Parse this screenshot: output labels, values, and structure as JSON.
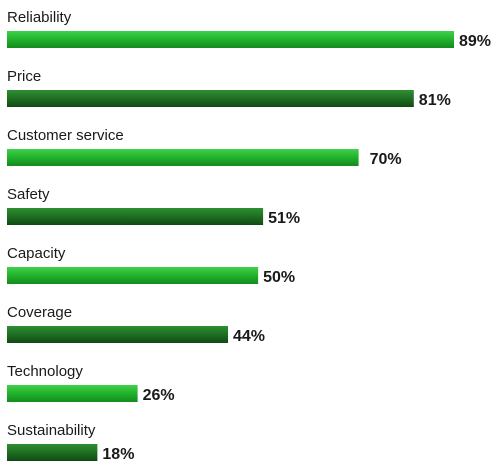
{
  "chart_data": {
    "type": "bar",
    "orientation": "horizontal",
    "categories": [
      "Reliability",
      "Price",
      "Customer service",
      "Safety",
      "Capacity",
      "Coverage",
      "Technology",
      "Sustainability"
    ],
    "values": [
      89,
      81,
      70,
      51,
      50,
      44,
      26,
      18
    ],
    "value_labels": [
      "89%",
      "81%",
      "70%",
      "51%",
      "50%",
      "44%",
      "26%",
      "18%"
    ],
    "unit": "%",
    "xlim": [
      0,
      100
    ],
    "grid": false,
    "legend": "none",
    "colors": {
      "light_green_top": "#3fd14a",
      "light_green_mid": "#1fae2a",
      "light_green_bottom": "#138a1d",
      "dark_green_top": "#2e8f32",
      "dark_green_mid": "#1d6b21",
      "dark_green_bottom": "#0f4a13"
    }
  }
}
